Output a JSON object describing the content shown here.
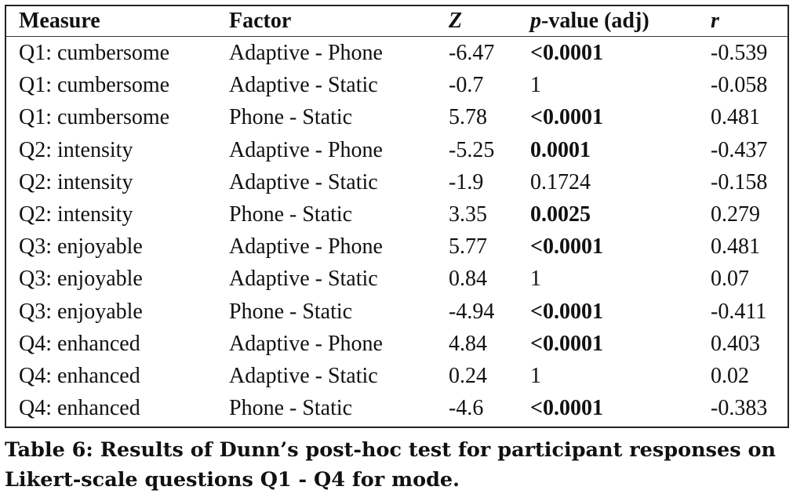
{
  "table": {
    "headers": {
      "measure": "Measure",
      "factor": "Factor",
      "z": "Z",
      "p_italic": "p",
      "p_rest": "-value (adj)",
      "r": "r"
    },
    "rows": [
      {
        "measure": "Q1: cumbersome",
        "factor": "Adaptive - Phone",
        "z": "-6.47",
        "p": "<0.0001",
        "p_bold": true,
        "r": "-0.539"
      },
      {
        "measure": "Q1: cumbersome",
        "factor": "Adaptive - Static",
        "z": "-0.7",
        "p": "1",
        "p_bold": false,
        "r": "-0.058"
      },
      {
        "measure": "Q1: cumbersome",
        "factor": "Phone - Static",
        "z": "5.78",
        "p": "<0.0001",
        "p_bold": true,
        "r": "0.481"
      },
      {
        "measure": "Q2: intensity",
        "factor": "Adaptive - Phone",
        "z": "-5.25",
        "p": "0.0001",
        "p_bold": true,
        "r": "-0.437"
      },
      {
        "measure": "Q2: intensity",
        "factor": "Adaptive - Static",
        "z": "-1.9",
        "p": "0.1724",
        "p_bold": false,
        "r": "-0.158"
      },
      {
        "measure": "Q2: intensity",
        "factor": "Phone - Static",
        "z": "3.35",
        "p": "0.0025",
        "p_bold": true,
        "r": "0.279"
      },
      {
        "measure": "Q3: enjoyable",
        "factor": "Adaptive - Phone",
        "z": "5.77",
        "p": "<0.0001",
        "p_bold": true,
        "r": "0.481"
      },
      {
        "measure": "Q3: enjoyable",
        "factor": "Adaptive - Static",
        "z": "0.84",
        "p": "1",
        "p_bold": false,
        "r": "0.07"
      },
      {
        "measure": "Q3: enjoyable",
        "factor": "Phone - Static",
        "z": "-4.94",
        "p": "<0.0001",
        "p_bold": true,
        "r": "-0.411"
      },
      {
        "measure": "Q4: enhanced",
        "factor": "Adaptive - Phone",
        "z": "4.84",
        "p": "<0.0001",
        "p_bold": true,
        "r": "0.403"
      },
      {
        "measure": "Q4: enhanced",
        "factor": "Adaptive - Static",
        "z": "0.24",
        "p": "1",
        "p_bold": false,
        "r": "0.02"
      },
      {
        "measure": "Q4: enhanced",
        "factor": "Phone - Static",
        "z": "-4.6",
        "p": "<0.0001",
        "p_bold": true,
        "r": "-0.383"
      }
    ]
  },
  "caption": {
    "line1": "Table 6: Results of Dunn’s post-hoc test for participant responses on",
    "line2": "Likert-scale questions Q1 - Q4 for mode."
  }
}
